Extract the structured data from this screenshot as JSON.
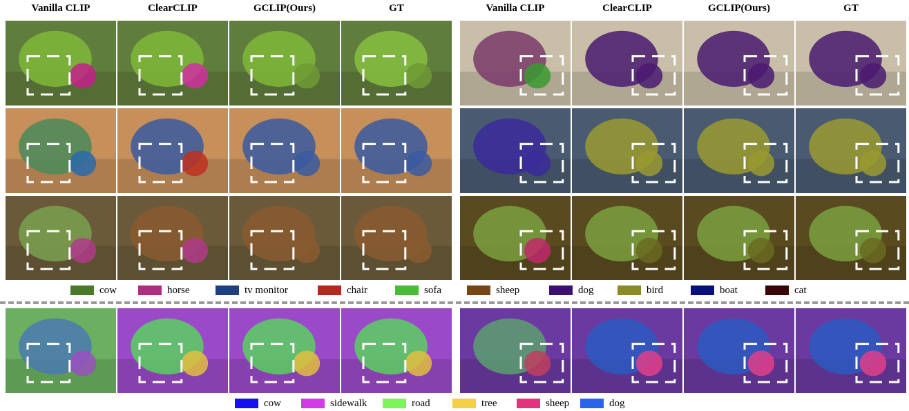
{
  "headers": [
    "Vanilla CLIP",
    "ClearCLIP",
    "GCLIP(Ours)",
    "GT",
    "Vanilla CLIP",
    "ClearCLIP",
    "GCLIP(Ours)",
    "GT"
  ],
  "legend_top": [
    {
      "label": "cow",
      "color": "#4a7a28"
    },
    {
      "label": "horse",
      "color": "#b02e80"
    },
    {
      "label": "tv monitor",
      "color": "#1e3f80"
    },
    {
      "label": "chair",
      "color": "#b02a1e"
    },
    {
      "label": "sofa",
      "color": "#4cbb3c"
    },
    {
      "label": "sheep",
      "color": "#7a4515"
    },
    {
      "label": "dog",
      "color": "#3c1070"
    },
    {
      "label": "bird",
      "color": "#8a8a28"
    },
    {
      "label": "boat",
      "color": "#0a0f80"
    },
    {
      "label": "cat",
      "color": "#3a0505"
    }
  ],
  "legend_bottom": [
    {
      "label": "cow",
      "color": "#1410f0"
    },
    {
      "label": "sidewalk",
      "color": "#d43ae8"
    },
    {
      "label": "road",
      "color": "#7cf55a"
    },
    {
      "label": "tree",
      "color": "#f5d040"
    },
    {
      "label": "sheep",
      "color": "#e3327e"
    },
    {
      "label": "dog",
      "color": "#2a64e8"
    }
  ]
}
